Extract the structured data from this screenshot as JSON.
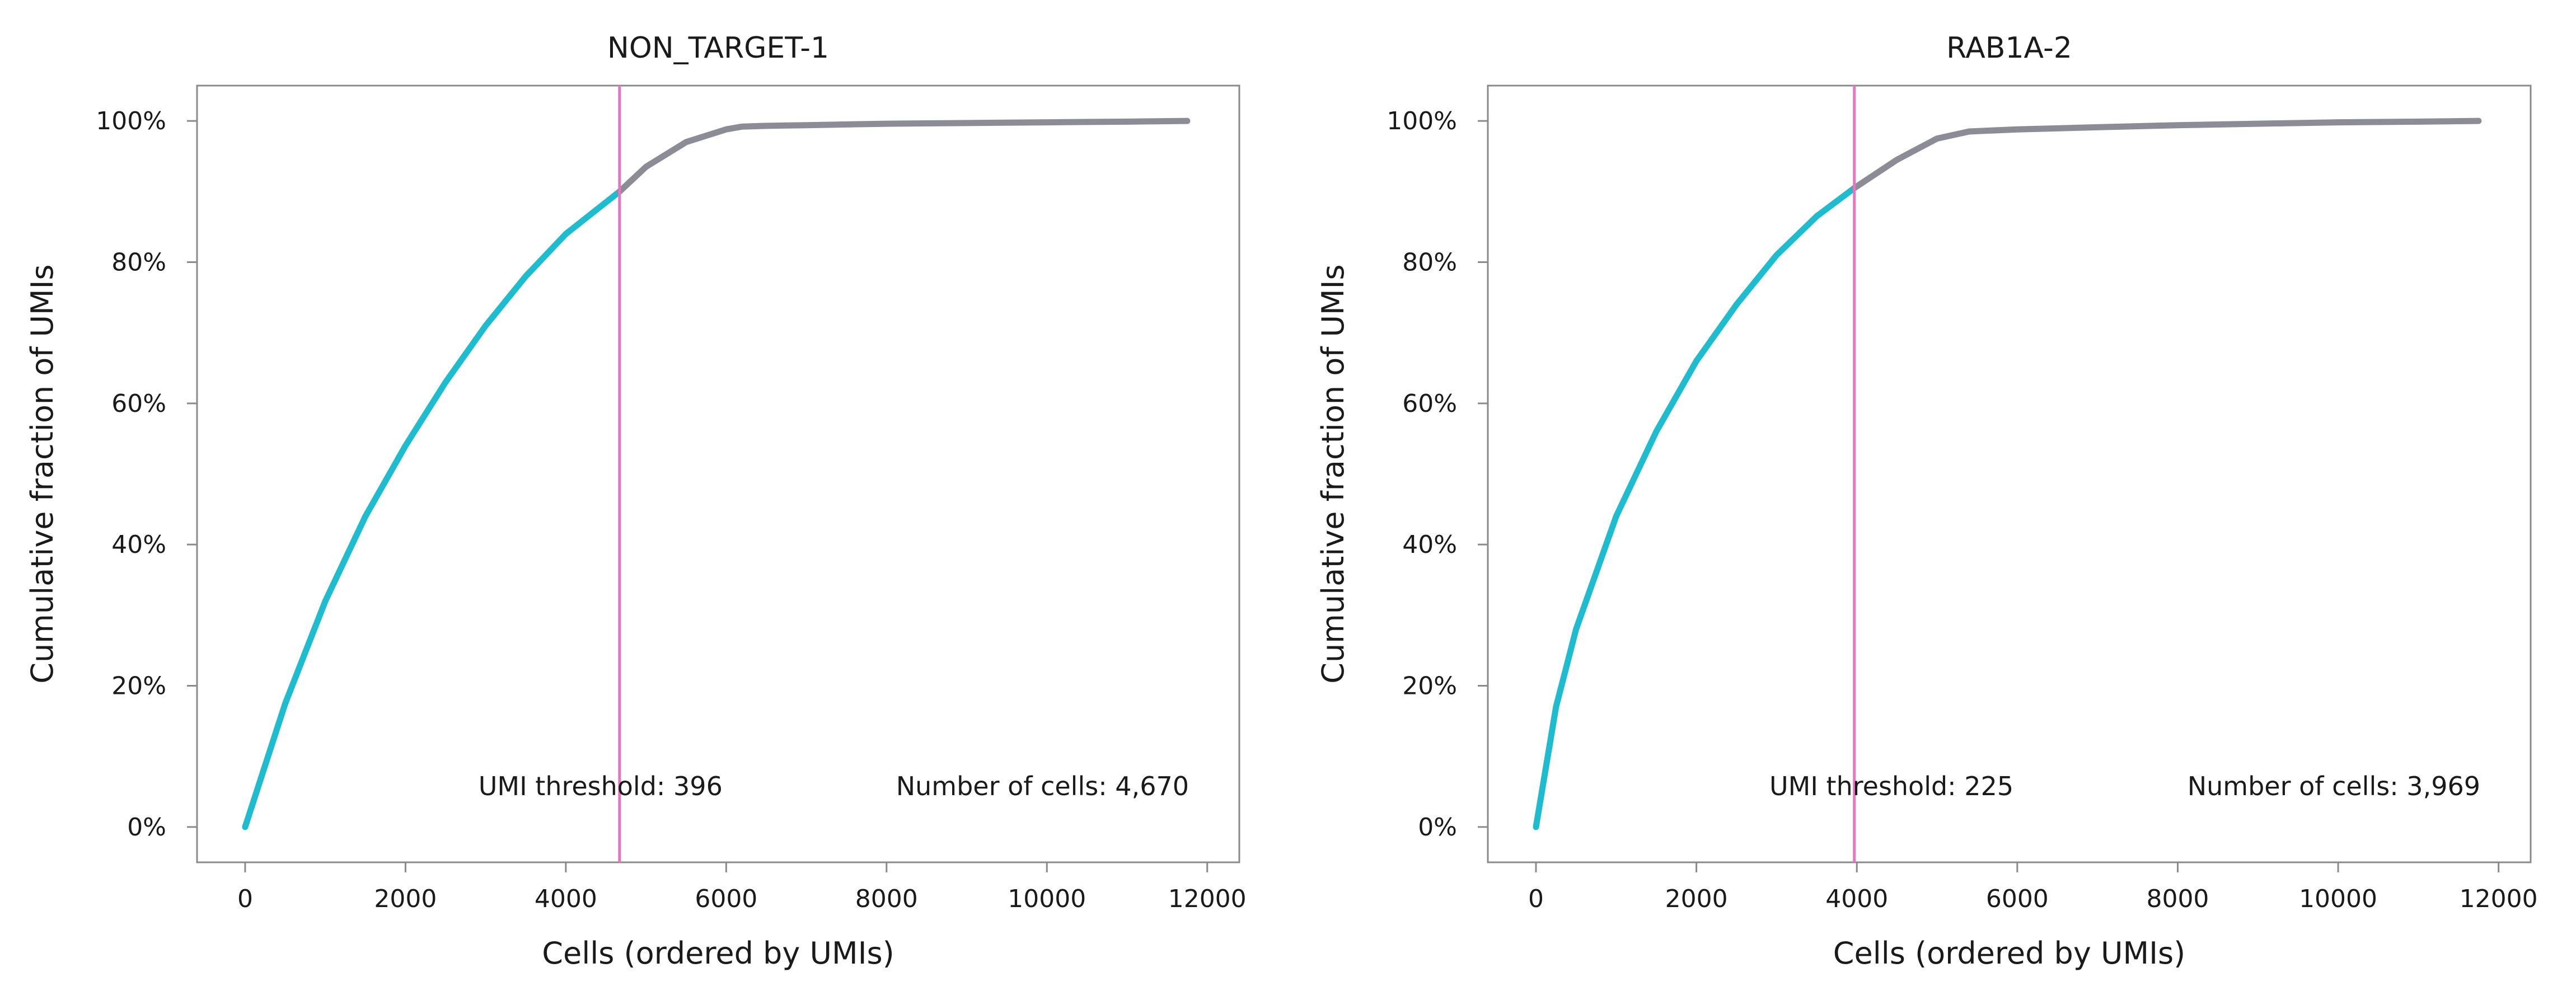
{
  "colors": {
    "above_threshold": "#1FBCCF",
    "below_threshold": "#8C8C96",
    "threshold_line": "#E377C2",
    "axes": "#8A8A8A",
    "background": "#FFFFFF"
  },
  "chart_data": [
    {
      "type": "line",
      "title": "NON_TARGET-1",
      "xlabel": "Cells (ordered by UMIs)",
      "ylabel": "Cumulative fraction of UMIs",
      "xlim": [
        -600,
        12400
      ],
      "ylim": [
        -0.05,
        1.05
      ],
      "xticks": [
        0,
        2000,
        4000,
        6000,
        8000,
        10000,
        12000
      ],
      "xtick_labels": [
        "0",
        "2000",
        "4000",
        "6000",
        "8000",
        "10000",
        "12000"
      ],
      "yticks": [
        0,
        0.2,
        0.4,
        0.6,
        0.8,
        1.0
      ],
      "ytick_labels": [
        "0%",
        "20%",
        "40%",
        "60%",
        "80%",
        "100%"
      ],
      "grid": false,
      "threshold_cell_index": 4670,
      "annotations": [
        "UMI threshold: 396",
        "Number of cells: 4,670"
      ],
      "series": [
        {
          "segment": "cells_above_threshold",
          "x": [
            0,
            500,
            1000,
            1500,
            2000,
            2500,
            3000,
            3500,
            4000,
            4670
          ],
          "y": [
            0.0,
            0.175,
            0.32,
            0.44,
            0.54,
            0.63,
            0.71,
            0.78,
            0.84,
            0.9
          ]
        },
        {
          "segment": "cells_below_threshold",
          "x": [
            4670,
            5000,
            5500,
            6000,
            6200,
            6500,
            7000,
            8000,
            9000,
            10000,
            11000,
            11750
          ],
          "y": [
            0.9,
            0.935,
            0.97,
            0.988,
            0.992,
            0.993,
            0.994,
            0.996,
            0.997,
            0.998,
            0.999,
            1.0
          ]
        }
      ]
    },
    {
      "type": "line",
      "title": "RAB1A-2",
      "xlabel": "Cells (ordered by UMIs)",
      "ylabel": "Cumulative fraction of UMIs",
      "xlim": [
        -600,
        12400
      ],
      "ylim": [
        -0.05,
        1.05
      ],
      "xticks": [
        0,
        2000,
        4000,
        6000,
        8000,
        10000,
        12000
      ],
      "xtick_labels": [
        "0",
        "2000",
        "4000",
        "6000",
        "8000",
        "10000",
        "12000"
      ],
      "yticks": [
        0,
        0.2,
        0.4,
        0.6,
        0.8,
        1.0
      ],
      "ytick_labels": [
        "0%",
        "20%",
        "40%",
        "60%",
        "80%",
        "100%"
      ],
      "grid": false,
      "threshold_cell_index": 3969,
      "annotations": [
        "UMI threshold: 225",
        "Number of cells: 3,969"
      ],
      "series": [
        {
          "segment": "cells_above_threshold",
          "x": [
            0,
            250,
            500,
            1000,
            1500,
            2000,
            2500,
            3000,
            3500,
            3969
          ],
          "y": [
            0.0,
            0.17,
            0.28,
            0.44,
            0.56,
            0.66,
            0.74,
            0.81,
            0.865,
            0.905
          ]
        },
        {
          "segment": "cells_below_threshold",
          "x": [
            3969,
            4500,
            5000,
            5400,
            6000,
            7000,
            8000,
            9000,
            10000,
            11000,
            11750
          ],
          "y": [
            0.905,
            0.945,
            0.975,
            0.985,
            0.988,
            0.991,
            0.994,
            0.996,
            0.998,
            0.999,
            1.0
          ]
        }
      ]
    }
  ]
}
